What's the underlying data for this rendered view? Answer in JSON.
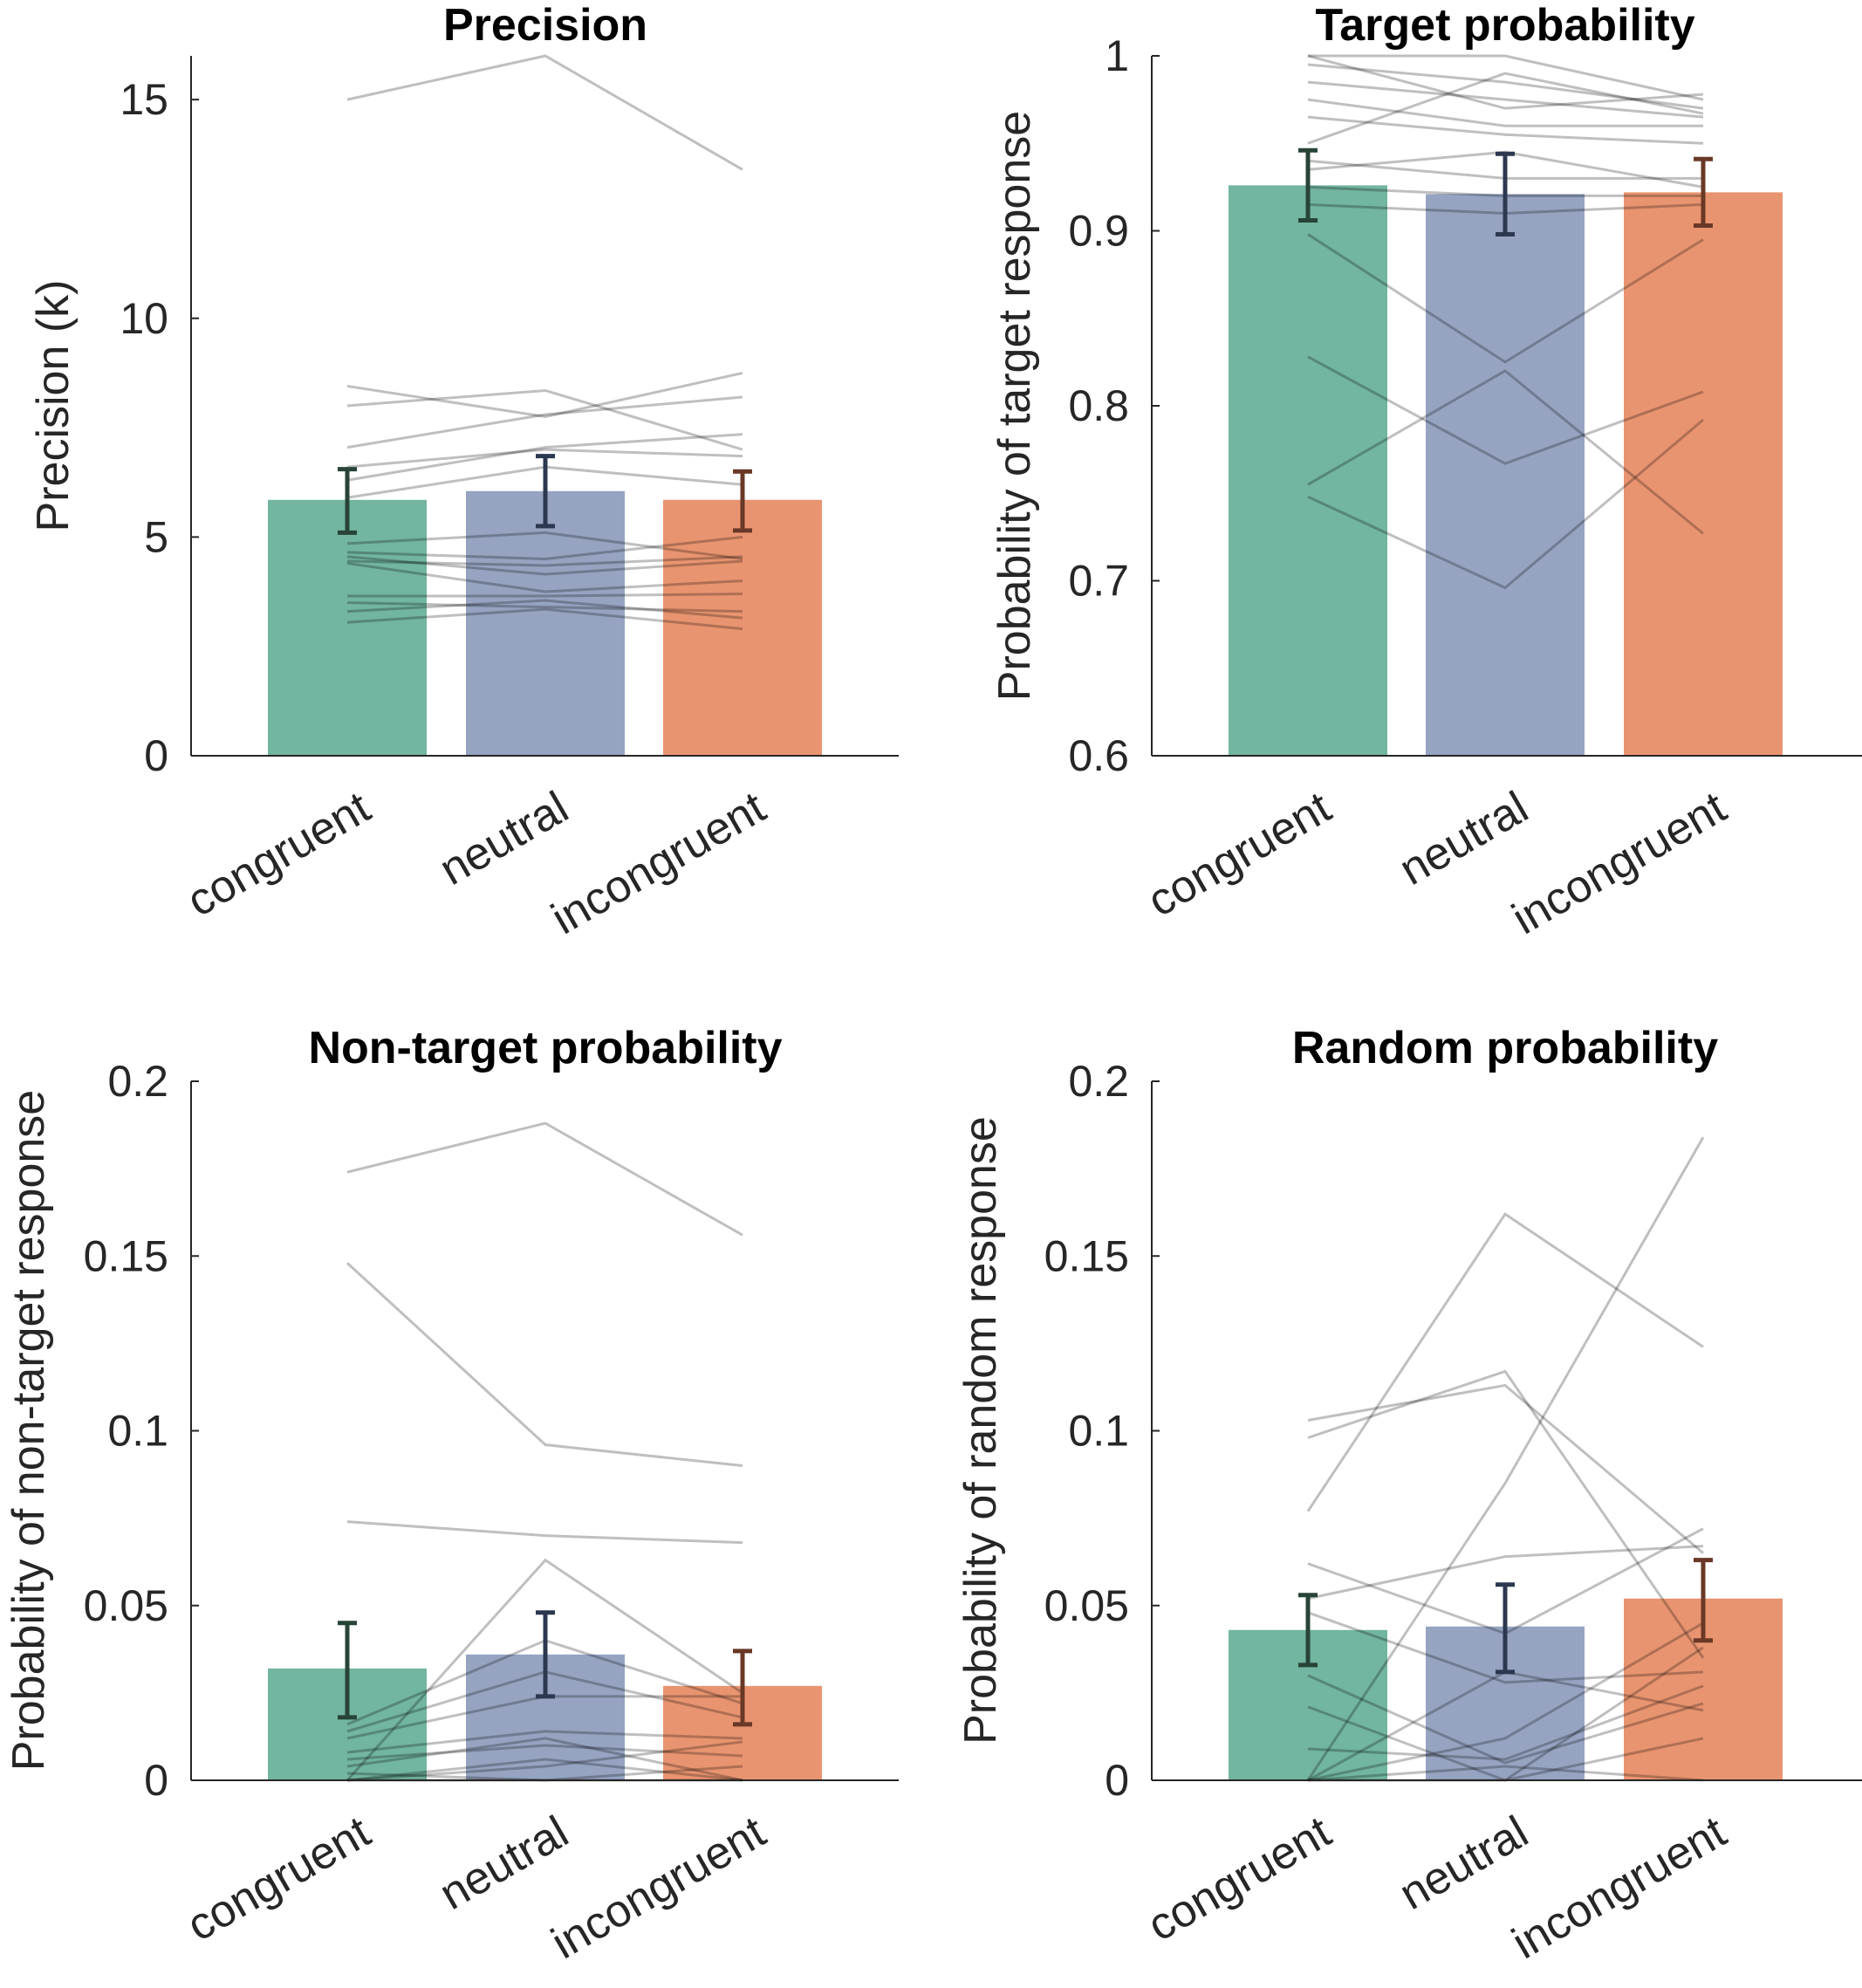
{
  "colors": {
    "congruent": "#72b5a0",
    "neutral": "#96a4c2",
    "incongruent": "#e99470",
    "err_congruent": "#284437",
    "err_neutral": "#2c3850",
    "err_incongruent": "#693826",
    "subject_line": "#000000"
  },
  "chart_data": [
    {
      "type": "bar",
      "title": "Precision",
      "ylabel": "Precision (k)",
      "categories": [
        "congruent",
        "neutral",
        "incongruent"
      ],
      "ylim": [
        0,
        16
      ],
      "yticks": [
        0,
        5,
        10,
        15
      ],
      "ytick_labels": [
        "0",
        "5",
        "10",
        "15"
      ],
      "values": [
        5.85,
        6.05,
        5.85
      ],
      "error": [
        [
          5.1,
          6.55
        ],
        [
          5.25,
          6.85
        ],
        [
          5.15,
          6.5
        ]
      ],
      "subjects": [
        [
          15.0,
          16.0,
          13.4
        ],
        [
          8.45,
          7.75,
          8.75
        ],
        [
          8.0,
          8.35,
          7.0
        ],
        [
          7.05,
          7.8,
          8.2
        ],
        [
          6.6,
          7.0,
          6.85
        ],
        [
          6.3,
          7.05,
          7.35
        ],
        [
          5.9,
          6.6,
          6.2
        ],
        [
          4.85,
          5.1,
          4.5
        ],
        [
          4.65,
          4.5,
          5.0
        ],
        [
          4.55,
          4.15,
          4.45
        ],
        [
          4.45,
          4.35,
          4.55
        ],
        [
          4.4,
          3.75,
          4.0
        ],
        [
          3.65,
          3.65,
          3.7
        ],
        [
          3.5,
          3.4,
          3.3
        ],
        [
          3.3,
          3.55,
          3.15
        ],
        [
          3.05,
          3.35,
          2.9
        ]
      ]
    },
    {
      "type": "bar",
      "title": "Target probability",
      "ylabel": "Probability of target response",
      "categories": [
        "congruent",
        "neutral",
        "incongruent"
      ],
      "ylim": [
        0.6,
        1
      ],
      "yticks": [
        0.6,
        0.7,
        0.8,
        0.9,
        1
      ],
      "ytick_labels": [
        "0.6",
        "0.7",
        "0.8",
        "0.9",
        "1"
      ],
      "values": [
        0.926,
        0.921,
        0.922
      ],
      "error": [
        [
          0.906,
          0.946
        ],
        [
          0.898,
          0.944
        ],
        [
          0.903,
          0.941
        ]
      ],
      "subjects": [
        [
          1.0,
          1.0,
          0.975
        ],
        [
          1.0,
          0.97,
          0.978
        ],
        [
          0.995,
          0.985,
          0.97
        ],
        [
          0.985,
          0.975,
          0.965
        ],
        [
          0.975,
          0.96,
          0.96
        ],
        [
          0.965,
          0.955,
          0.95
        ],
        [
          0.95,
          0.99,
          0.967
        ],
        [
          0.94,
          0.93,
          0.93
        ],
        [
          0.935,
          0.945,
          0.925
        ],
        [
          0.925,
          0.92,
          0.92
        ],
        [
          0.915,
          0.91,
          0.915
        ],
        [
          0.898,
          0.825,
          0.895
        ],
        [
          0.828,
          0.767,
          0.808
        ],
        [
          0.755,
          0.82,
          0.727
        ],
        [
          0.748,
          0.696,
          0.792
        ]
      ]
    },
    {
      "type": "bar",
      "title": "Non-target probability",
      "ylabel": "Probability of non-target response",
      "categories": [
        "congruent",
        "neutral",
        "incongruent"
      ],
      "ylim": [
        0,
        0.2
      ],
      "yticks": [
        0,
        0.05,
        0.1,
        0.15,
        0.2
      ],
      "ytick_labels": [
        "0",
        "0.05",
        "0.1",
        "0.15",
        "0.2"
      ],
      "values": [
        0.032,
        0.036,
        0.027
      ],
      "error": [
        [
          0.018,
          0.045
        ],
        [
          0.024,
          0.048
        ],
        [
          0.016,
          0.037
        ]
      ],
      "subjects": [
        [
          0.174,
          0.188,
          0.156
        ],
        [
          0.148,
          0.096,
          0.09
        ],
        [
          0.074,
          0.07,
          0.068
        ],
        [
          0.0,
          0.063,
          0.025
        ],
        [
          0.016,
          0.04,
          0.022
        ],
        [
          0.014,
          0.031,
          0.018
        ],
        [
          0.012,
          0.024,
          0.024
        ],
        [
          0.008,
          0.014,
          0.012
        ],
        [
          0.006,
          0.01,
          0.007
        ],
        [
          0.004,
          0.012,
          0.0
        ],
        [
          0.002,
          0.0,
          0.004
        ],
        [
          0.0,
          0.006,
          0.0
        ],
        [
          0.0,
          0.004,
          0.011
        ],
        [
          0.0,
          0.0,
          0.0
        ]
      ]
    },
    {
      "type": "bar",
      "title": "Random probability",
      "ylabel": "Probability of random response",
      "categories": [
        "congruent",
        "neutral",
        "incongruent"
      ],
      "ylim": [
        0,
        0.2
      ],
      "yticks": [
        0,
        0.05,
        0.1,
        0.15,
        0.2
      ],
      "ytick_labels": [
        "0",
        "0.05",
        "0.1",
        "0.15",
        "0.2"
      ],
      "values": [
        0.043,
        0.044,
        0.052
      ],
      "error": [
        [
          0.033,
          0.053
        ],
        [
          0.031,
          0.056
        ],
        [
          0.04,
          0.063
        ]
      ],
      "subjects": [
        [
          0.0,
          0.085,
          0.184
        ],
        [
          0.103,
          0.113,
          0.065
        ],
        [
          0.098,
          0.117,
          0.035
        ],
        [
          0.077,
          0.162,
          0.124
        ],
        [
          0.062,
          0.042,
          0.072
        ],
        [
          0.052,
          0.064,
          0.067
        ],
        [
          0.048,
          0.028,
          0.031
        ],
        [
          0.03,
          0.005,
          0.022
        ],
        [
          0.021,
          0.0,
          0.012
        ],
        [
          0.009,
          0.006,
          0.027
        ],
        [
          0.0,
          0.012,
          0.045
        ],
        [
          0.0,
          0.031,
          0.02
        ],
        [
          0.0,
          0.0,
          0.038
        ],
        [
          0.0,
          0.004,
          0.0
        ]
      ]
    }
  ]
}
